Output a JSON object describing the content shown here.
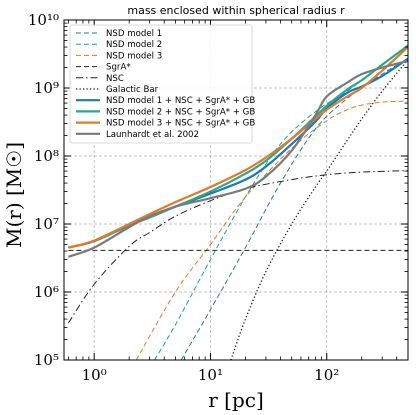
{
  "chart_data": {
    "type": "line",
    "title": "mass enclosed within spherical radius r",
    "xlabel": "r [pc]",
    "ylabel": "M(r) [M☉]",
    "xscale": "log",
    "yscale": "log",
    "xlim": [
      0.55,
      500
    ],
    "ylim": [
      100000,
      10000000000
    ],
    "xticks": [
      {
        "value": 1,
        "label": "10⁰"
      },
      {
        "value": 10,
        "label": "10¹"
      },
      {
        "value": 100,
        "label": "10²"
      }
    ],
    "yticks": [
      {
        "value": 100000,
        "label": "10⁵"
      },
      {
        "value": 1000000,
        "label": "10⁶"
      },
      {
        "value": 10000000,
        "label": "10⁷"
      },
      {
        "value": 100000000,
        "label": "10⁸"
      },
      {
        "value": 1000000000,
        "label": "10⁹"
      },
      {
        "value": 10000000000,
        "label": "10¹⁰"
      }
    ],
    "grid": true,
    "legend_position": "top-left",
    "series": [
      {
        "name": "NSD model 1",
        "color": "#1f77b4",
        "style": "dashed",
        "width": 1,
        "x": [
          5.6,
          10,
          20,
          40,
          80,
          150,
          300,
          500
        ],
        "y": [
          100000,
          550000,
          4500000,
          40000000,
          250000000,
          700000000,
          1600000000,
          2700000000
        ]
      },
      {
        "name": "NSD model 2",
        "color": "#17a592",
        "style": "dashed",
        "width": 1,
        "x": [
          3.3,
          5,
          10,
          20,
          40,
          80,
          150,
          300,
          500
        ],
        "y": [
          100000,
          330000,
          3000000,
          25000000,
          150000000,
          450000000,
          900000000,
          2200000000,
          4200000000
        ]
      },
      {
        "name": "NSD model 3",
        "color": "#e8762b",
        "style": "dashed",
        "width": 1,
        "x": [
          2.3,
          5,
          10,
          20,
          50,
          100,
          150,
          200,
          300,
          500
        ],
        "y": [
          100000,
          1000000,
          5000000,
          25000000,
          130000000,
          330000000,
          480000000,
          560000000,
          620000000,
          640000000
        ]
      },
      {
        "name": "SgrA*",
        "color": "#222222",
        "style": "dashed",
        "width": 1,
        "x": [
          0.6,
          500
        ],
        "y": [
          4100000,
          4100000
        ]
      },
      {
        "name": "NSC",
        "color": "#222222",
        "style": "dashdot",
        "width": 1,
        "x": [
          0.6,
          1,
          2,
          3,
          5,
          10,
          20,
          50,
          100,
          200,
          500
        ],
        "y": [
          350000,
          1300000,
          4700000,
          7500000,
          13000000,
          22000000,
          33000000,
          45000000,
          53000000,
          58000000,
          61000000
        ]
      },
      {
        "name": "Galactic Bar",
        "color": "#222222",
        "style": "dotted",
        "width": 1.3,
        "x": [
          15,
          20,
          30,
          50,
          80,
          100,
          150,
          200,
          300,
          500
        ],
        "y": [
          100000,
          400000,
          2000000,
          10000000,
          35000000,
          60000000,
          170000000,
          350000000,
          900000000,
          2600000000
        ]
      },
      {
        "name": "NSD model 1 + NSC + SgrA* + GB",
        "color": "#1f77b4",
        "style": "solid",
        "width": 2.2,
        "x": [
          0.6,
          1,
          2,
          3,
          5,
          10,
          20,
          30,
          50,
          80,
          100,
          150,
          200,
          300,
          500
        ],
        "y": [
          4500000,
          5600000,
          9500000,
          12500000,
          18000000,
          28000000,
          45000000,
          70000000,
          150000000,
          320000000,
          500000000,
          850000000,
          1050000000,
          1500000000,
          2700000000
        ]
      },
      {
        "name": "NSD model 2 + NSC + SgrA* + GB",
        "color": "#2aa889",
        "style": "solid",
        "width": 2.2,
        "x": [
          0.6,
          1,
          2,
          3,
          5,
          10,
          20,
          30,
          50,
          80,
          100,
          150,
          200,
          300,
          500
        ],
        "y": [
          4500000,
          5600000,
          9500000,
          12500000,
          18000000,
          30000000,
          55000000,
          85000000,
          180000000,
          380000000,
          550000000,
          950000000,
          1300000000,
          2200000000,
          4200000000
        ]
      },
      {
        "name": "NSD model 3 + NSC + SgrA* + GB",
        "color": "#e8762b",
        "style": "solid",
        "width": 2.2,
        "x": [
          0.6,
          1,
          2,
          3,
          5,
          10,
          20,
          30,
          50,
          80,
          100,
          150,
          200,
          300,
          500
        ],
        "y": [
          4500000,
          5700000,
          10000000,
          14000000,
          21000000,
          35000000,
          62000000,
          95000000,
          180000000,
          350000000,
          480000000,
          750000000,
          1000000000,
          1800000000,
          4000000000
        ]
      },
      {
        "name": "Launhardt et al. 2002",
        "color": "#7a7a7a",
        "style": "solid",
        "width": 2.2,
        "x": [
          0.6,
          1,
          2,
          3,
          5,
          10,
          20,
          30,
          50,
          80,
          100,
          150,
          200,
          300,
          500
        ],
        "y": [
          3300000,
          4500000,
          9000000,
          13000000,
          18000000,
          24000000,
          33000000,
          50000000,
          120000000,
          400000000,
          750000000,
          1200000000,
          1600000000,
          2000000000,
          2500000000
        ]
      }
    ]
  }
}
